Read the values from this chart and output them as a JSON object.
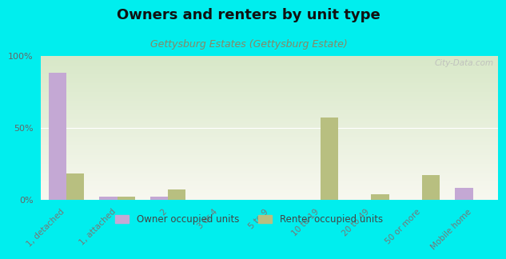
{
  "title": "Owners and renters by unit type",
  "subtitle": "Gettysburg Estates (Gettysburg Estate)",
  "categories": [
    "1, detached",
    "1, attached",
    "2",
    "3 or 4",
    "5 to 9",
    "10 to 19",
    "20 to 49",
    "50 or more",
    "Mobile home"
  ],
  "owner_values": [
    88,
    2,
    2,
    0,
    0,
    0,
    0,
    0,
    8
  ],
  "renter_values": [
    18,
    2,
    7,
    0,
    0,
    57,
    4,
    17,
    0
  ],
  "owner_color": "#c4a8d4",
  "renter_color": "#b8bf80",
  "background_color": "#00eeee",
  "plot_bg_top": "#d8e8c8",
  "plot_bg_bottom": "#f8f8f0",
  "ylim": [
    0,
    100
  ],
  "yticks": [
    0,
    50,
    100
  ],
  "ytick_labels": [
    "0%",
    "50%",
    "100%"
  ],
  "bar_width": 0.35,
  "watermark": "City-Data.com",
  "legend_owner": "Owner occupied units",
  "legend_renter": "Renter occupied units",
  "title_fontsize": 13,
  "subtitle_fontsize": 9,
  "subtitle_color": "#888866",
  "tick_label_fontsize": 7.5,
  "ytick_label_fontsize": 8
}
